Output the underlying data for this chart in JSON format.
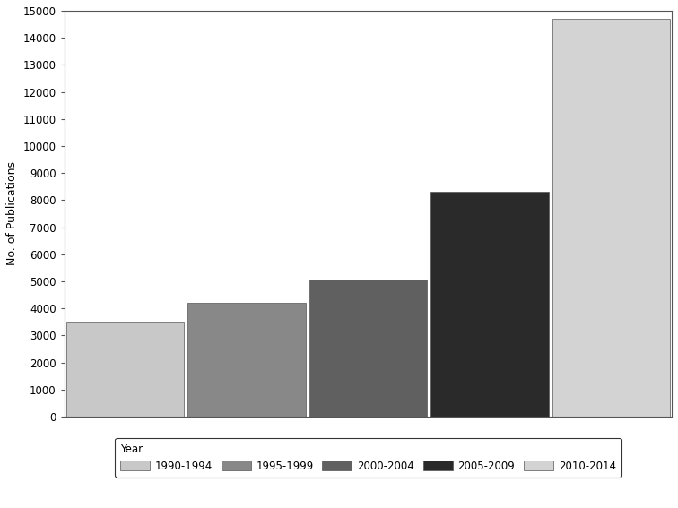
{
  "categories": [
    "1990-1994",
    "1995-1999",
    "2000-2004",
    "2005-2009",
    "2010-2014"
  ],
  "values": [
    3500,
    4200,
    5050,
    8300,
    14700
  ],
  "bar_colors": [
    "#c8c8c8",
    "#888888",
    "#606060",
    "#2a2a2a",
    "#d3d3d3"
  ],
  "ylabel": "No. of Publications",
  "ylim": [
    0,
    15000
  ],
  "yticks": [
    0,
    1000,
    2000,
    3000,
    4000,
    5000,
    6000,
    7000,
    8000,
    9000,
    10000,
    11000,
    12000,
    13000,
    14000,
    15000
  ],
  "legend_title": "Year",
  "background_color": "#ffffff",
  "edge_color": "#555555",
  "bar_edge_color": "#555555",
  "figsize": [
    7.56,
    5.67
  ],
  "dpi": 100
}
